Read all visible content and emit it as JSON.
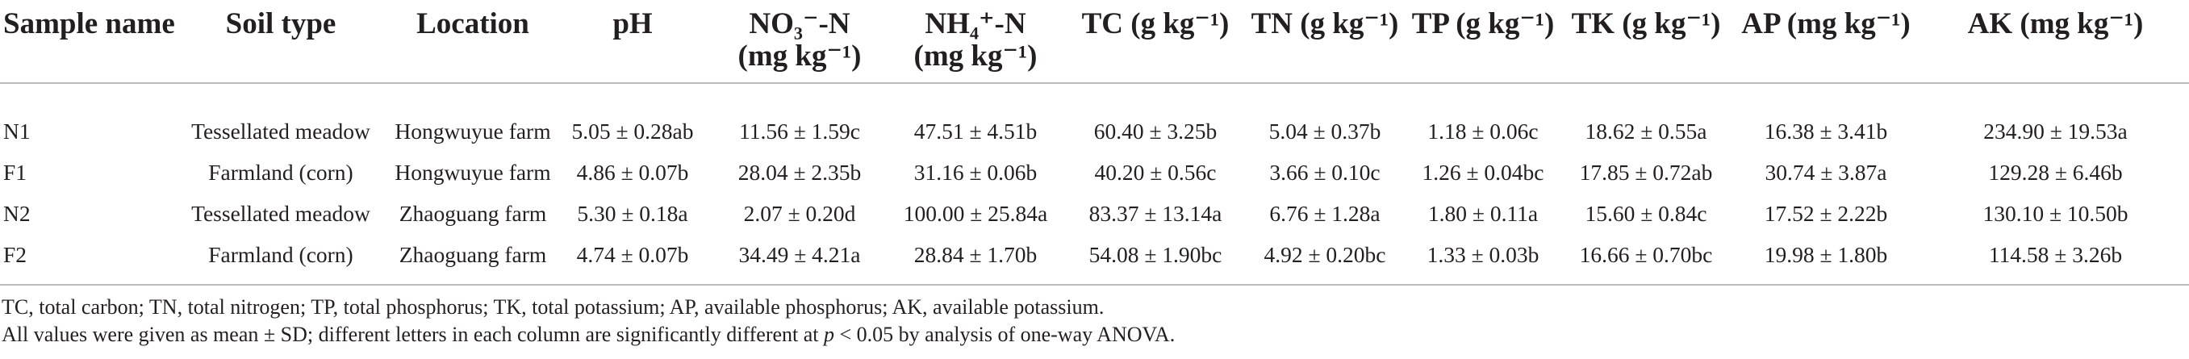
{
  "table": {
    "headers": [
      {
        "line1": "Sample name",
        "line2": ""
      },
      {
        "line1": "Soil type",
        "line2": ""
      },
      {
        "line1": "Location",
        "line2": ""
      },
      {
        "line1": "pH",
        "line2": ""
      },
      {
        "line1": "NO₃⁻-N",
        "line2": "(mg kg⁻¹)"
      },
      {
        "line1": "NH₄⁺-N",
        "line2": "(mg kg⁻¹)"
      },
      {
        "line1": "TC (g kg⁻¹)",
        "line2": ""
      },
      {
        "line1": "TN (g kg⁻¹)",
        "line2": ""
      },
      {
        "line1": "TP (g kg⁻¹)",
        "line2": ""
      },
      {
        "line1": "TK (g kg⁻¹)",
        "line2": ""
      },
      {
        "line1": "AP (mg kg⁻¹)",
        "line2": ""
      },
      {
        "line1": "AK (mg kg⁻¹)",
        "line2": ""
      }
    ],
    "rows": [
      [
        "N1",
        "Tessellated meadow",
        "Hongwuyue farm",
        "5.05 ± 0.28ab",
        "11.56 ± 1.59c",
        "47.51 ± 4.51b",
        "60.40 ± 3.25b",
        "5.04 ± 0.37b",
        "1.18 ± 0.06c",
        "18.62 ± 0.55a",
        "16.38 ± 3.41b",
        "234.90 ± 19.53a"
      ],
      [
        "F1",
        "Farmland (corn)",
        "Hongwuyue farm",
        "4.86 ± 0.07b",
        "28.04 ± 2.35b",
        "31.16 ± 0.06b",
        "40.20 ± 0.56c",
        "3.66 ± 0.10c",
        "1.26 ± 0.04bc",
        "17.85 ± 0.72ab",
        "30.74 ± 3.87a",
        "129.28 ± 6.46b"
      ],
      [
        "N2",
        "Tessellated meadow",
        "Zhaoguang farm",
        "5.30 ± 0.18a",
        "2.07 ± 0.20d",
        "100.00 ± 25.84a",
        "83.37 ± 13.14a",
        "6.76 ± 1.28a",
        "1.80 ± 0.11a",
        "15.60 ± 0.84c",
        "17.52 ± 2.22b",
        "130.10 ± 10.50b"
      ],
      [
        "F2",
        "Farmland (corn)",
        "Zhaoguang farm",
        "4.74 ± 0.07b",
        "34.49 ± 4.21a",
        "28.84 ± 1.70b",
        "54.08 ± 1.90bc",
        "4.92 ± 0.20bc",
        "1.33 ± 0.03b",
        "16.66 ± 0.70bc",
        "19.98 ± 1.80b",
        "114.58 ± 3.26b"
      ]
    ]
  },
  "footnotes": {
    "line1": "TC, total carbon; TN, total nitrogen; TP, total phosphorus; TK, total potassium; AP, available phosphorus; AK, available potassium.",
    "line2_before": "All values were given as mean ± SD; different letters in each column are significantly different at ",
    "line2_var": "p",
    "line2_after": " < 0.05 by analysis of one-way ANOVA."
  }
}
